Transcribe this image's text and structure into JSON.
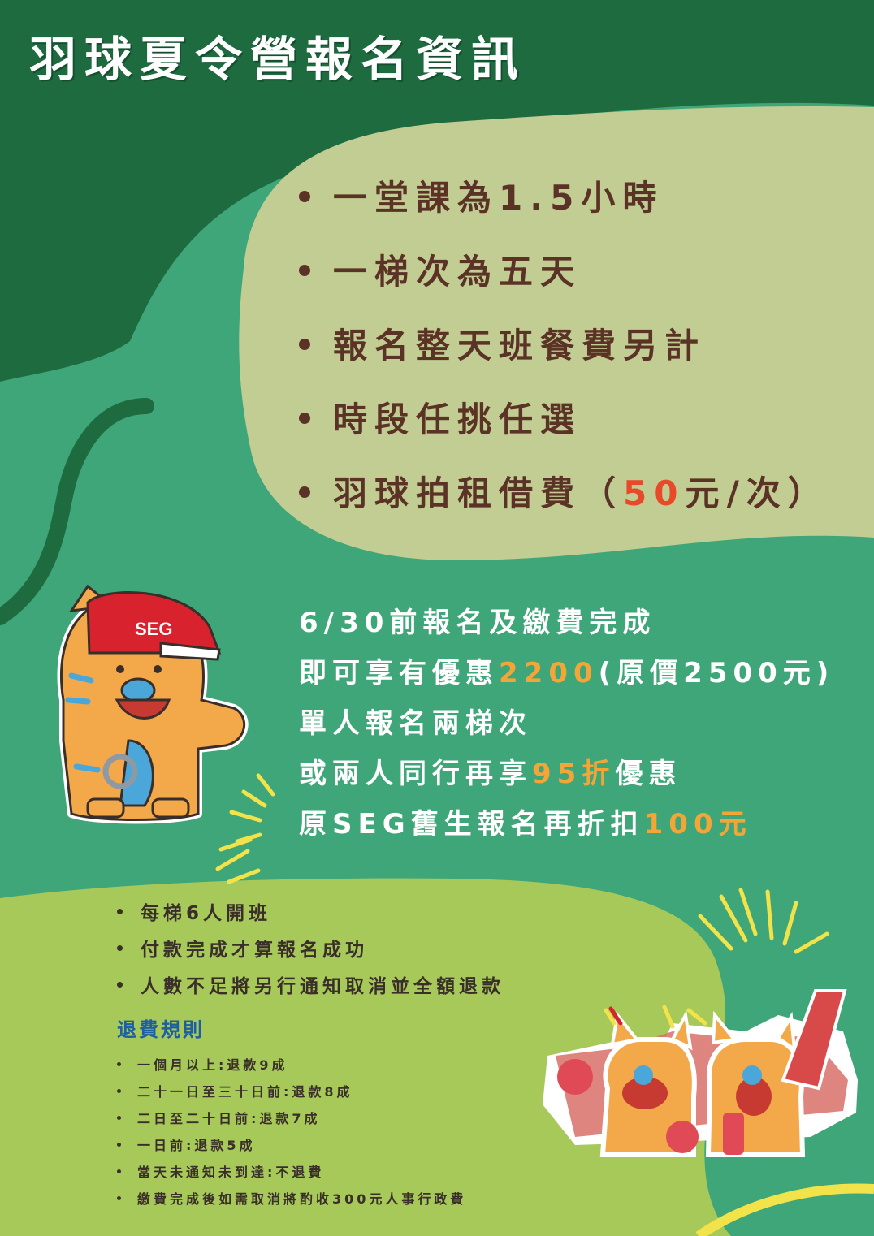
{
  "title": "羽球夏令營報名資訊",
  "features": [
    {
      "text": "一堂課為1.5小時"
    },
    {
      "text": "一梯次為五天"
    },
    {
      "text": "報名整天班餐費另計"
    },
    {
      "text": "時段任挑任選"
    },
    {
      "text": "羽球拍租借費（",
      "highlight": "50",
      "suffix": "元/次）"
    }
  ],
  "promo": {
    "line1": "6/30前報名及繳費完成",
    "line2_prefix": "即可享有優惠",
    "line2_price": "2200",
    "line2_suffix": "(原價2500元)",
    "line3": "單人報名兩梯次",
    "line4_prefix": "或兩人同行再享",
    "line4_discount": "95折",
    "line4_suffix": "優惠",
    "line5_prefix": "原SEG舊生報名再折扣",
    "line5_amount": "100元"
  },
  "notes": [
    "每梯6人開班",
    "付款完成才算報名成功",
    "人數不足將另行通知取消並全額退款"
  ],
  "refund_title": "退費規則",
  "refund_rules": [
    "一個月以上:退款9成",
    "二十一日至三十日前:退款8成",
    "二日至二十日前:退款7成",
    "一日前:退款5成",
    "當天未通知未到達:不退費",
    "繳費完成後如需取消將酌收300元人事行政費"
  ],
  "mascot_cap_text": "SEG",
  "colors": {
    "dark_green": "#1f6b40",
    "mid_green": "#3ea678",
    "pale_green": "#c2cd94",
    "lime_green": "#a7c95a",
    "brown_text": "#5b3326",
    "highlight_red": "#e8492a",
    "highlight_orange": "#f3a637",
    "refund_blue": "#1d5fa3"
  }
}
